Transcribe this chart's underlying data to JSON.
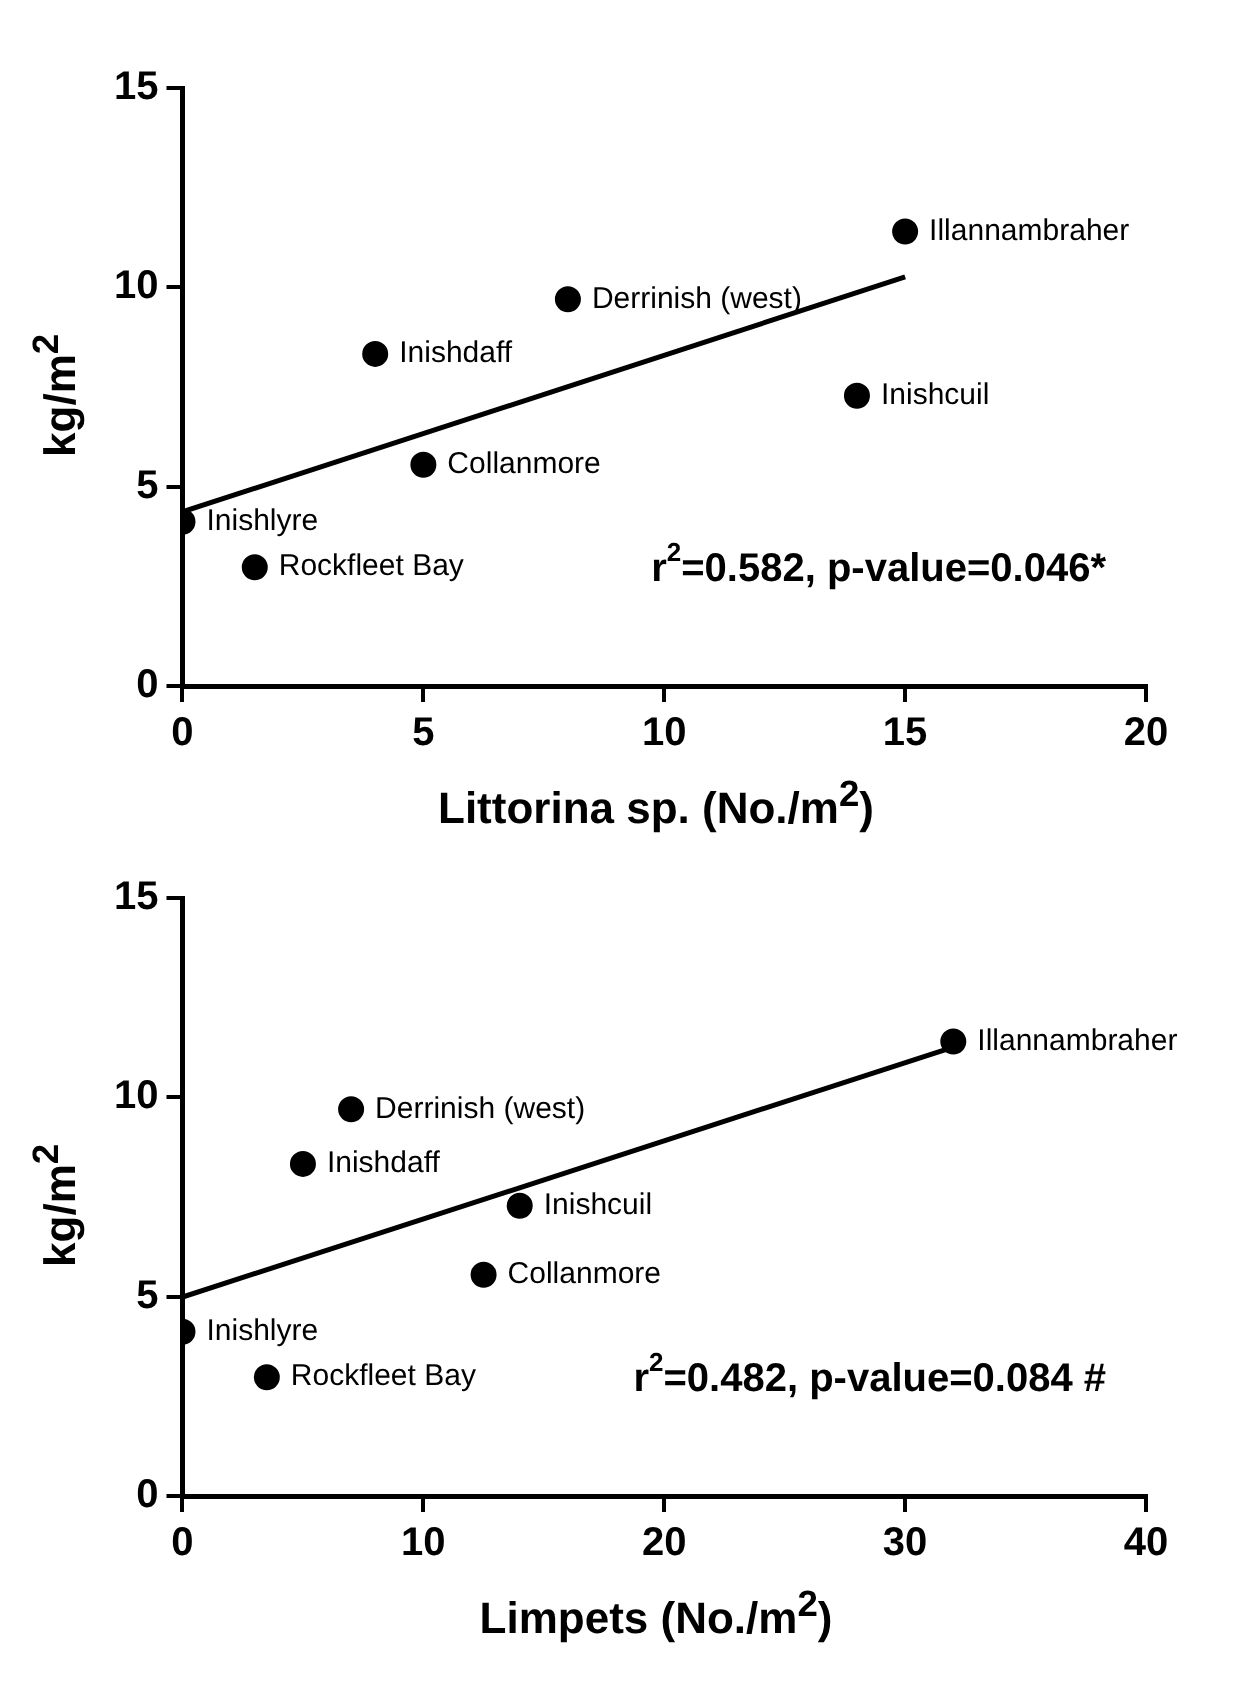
{
  "chart_data": [
    {
      "type": "scatter",
      "xlabel": "Littorina sp. (No./m$^{2}$)",
      "ylabel": "kg/m$^{2}$",
      "xlim": [
        0,
        20
      ],
      "ylim": [
        0,
        15
      ],
      "xticks": [
        0,
        5,
        10,
        15,
        20
      ],
      "yticks": [
        0,
        5,
        10,
        15
      ],
      "grid": false,
      "legend": false,
      "marker": "circle",
      "series": [
        {
          "color": "#000000",
          "x": [
            0,
            1.5,
            5,
            4,
            8,
            14,
            15
          ],
          "values": [
            4.12,
            2.98,
            5.55,
            8.33,
            9.7,
            7.28,
            11.4
          ]
        },
        {
          "type": "line",
          "color": "#000000",
          "marker": "none",
          "x": [
            0,
            15
          ],
          "values": [
            4.37,
            10.26
          ]
        }
      ],
      "annotations": [
        {
          "text": "Inishlyre",
          "x": 0,
          "y": 4.12
        },
        {
          "text": "Rockfleet Bay",
          "x": 1.5,
          "y": 2.98
        },
        {
          "text": "Collanmore",
          "x": 5,
          "y": 5.55
        },
        {
          "text": "Inishdaff",
          "x": 4,
          "y": 8.33
        },
        {
          "text": "Derrinish (west)",
          "x": 8,
          "y": 9.7
        },
        {
          "text": "Inishcuil",
          "x": 14,
          "y": 7.28
        },
        {
          "text": "Illannambraher",
          "x": 15,
          "y": 11.4
        },
        "r$^{2}$=0.582, p-value=0.046*"
      ]
    },
    {
      "type": "scatter",
      "xlabel": "Limpets (No./m$^{2}$)",
      "ylabel": "kg/m$^{2}$",
      "xlim": [
        0,
        40
      ],
      "ylim": [
        0,
        15
      ],
      "xticks": [
        0,
        10,
        20,
        30,
        40
      ],
      "yticks": [
        0,
        5,
        10,
        15
      ],
      "grid": false,
      "legend": false,
      "marker": "circle",
      "series": [
        {
          "color": "#000000",
          "x": [
            0,
            3.5,
            12.5,
            5,
            7,
            14,
            32
          ],
          "values": [
            4.12,
            2.98,
            5.55,
            8.33,
            9.7,
            7.28,
            11.4
          ]
        },
        {
          "type": "line",
          "color": "#000000",
          "marker": "none",
          "x": [
            0,
            32
          ],
          "values": [
            4.99,
            11.26
          ]
        }
      ],
      "annotations": [
        {
          "text": "Inishlyre",
          "x": 0,
          "y": 4.12
        },
        {
          "text": "Rockfleet Bay",
          "x": 3.5,
          "y": 2.98
        },
        {
          "text": "Collanmore",
          "x": 12.5,
          "y": 5.55
        },
        {
          "text": "Inishdaff",
          "x": 5,
          "y": 8.33
        },
        {
          "text": "Derrinish (west)",
          "x": 7,
          "y": 9.7
        },
        {
          "text": "Inishcuil",
          "x": 14,
          "y": 7.28
        },
        {
          "text": "Illannambraher",
          "x": 32,
          "y": 11.4
        },
        "r$^{2}$=0.482, p-value=0.084 #"
      ]
    }
  ]
}
